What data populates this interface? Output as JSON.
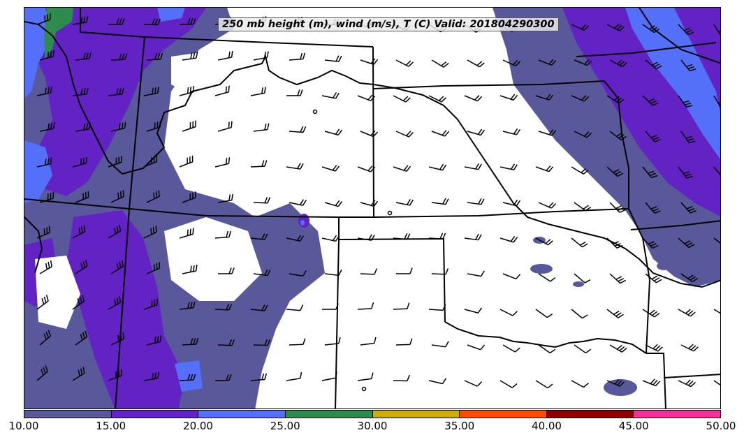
{
  "map": {
    "title": "250 mb height (m), wind (m/s), T (C) Valid: 201804290300"
  },
  "colorbar": {
    "labels": [
      "10.00",
      "15.00",
      "20.00",
      "25.00",
      "30.00",
      "35.00",
      "40.00",
      "45.00",
      "50.00"
    ],
    "colors": [
      "#58589a",
      "#6322c4",
      "#5470f8",
      "#2e8b4e",
      "#ccad0b",
      "#fb4c04",
      "#8b0000",
      "#f0309b"
    ]
  },
  "fill_colors": {
    "band_10_15": "#58589a",
    "band_15_20": "#6322c4",
    "band_20_25": "#5470f8",
    "band_25_30": "#2e8b4e"
  },
  "boundary_color": "#000000"
}
